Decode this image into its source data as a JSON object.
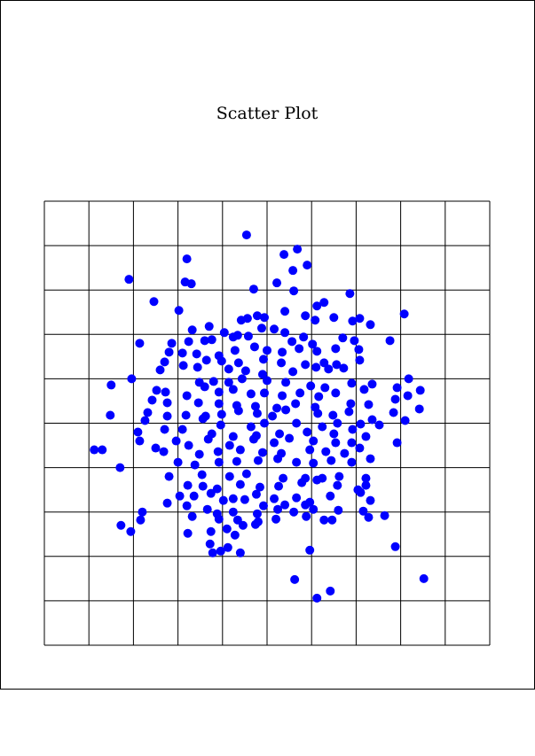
{
  "chart_data": {
    "type": "scatter",
    "title": "Scatter Plot",
    "color": "#0000ff",
    "grid": true,
    "xlim": [
      0,
      500
    ],
    "ylim": [
      0,
      500
    ],
    "xticks": [
      0,
      50,
      100,
      150,
      200,
      250,
      300,
      350,
      400,
      450,
      500
    ],
    "yticks": [
      0,
      50,
      100,
      150,
      200,
      250,
      300,
      350,
      400,
      450,
      500
    ],
    "x": [
      227,
      284,
      269,
      295,
      160,
      279,
      95,
      158,
      165,
      261,
      235,
      280,
      343,
      123,
      314,
      306,
      151,
      404,
      270,
      239,
      247,
      221,
      228,
      293,
      304,
      325,
      346,
      354,
      366,
      185,
      166,
      202,
      217,
      244,
      258,
      270,
      291,
      107,
      143,
      162,
      180,
      188,
      212,
      229,
      278,
      301,
      335,
      348,
      388,
      140,
      155,
      171,
      196,
      214,
      236,
      250,
      267,
      286,
      306,
      327,
      353,
      135,
      182,
      199,
      218,
      246,
      266,
      293,
      314,
      328,
      336,
      354,
      130,
      156,
      172,
      207,
      226,
      245,
      279,
      305,
      319,
      98,
      174,
      190,
      207,
      222,
      250,
      271,
      299,
      315,
      345,
      368,
      409,
      75,
      126,
      136,
      160,
      180,
      196,
      212,
      232,
      247,
      267,
      287,
      308,
      327,
      359,
      396,
      422,
      121,
      138,
      173,
      196,
      216,
      237,
      261,
      282,
      304,
      344,
      364,
      394,
      408,
      116,
      138,
      159,
      181,
      199,
      218,
      239,
      256,
      271,
      307,
      324,
      342,
      368,
      392,
      421,
      74,
      113,
      178,
      198,
      232,
      247,
      283,
      312,
      329,
      355,
      376,
      405,
      105,
      135,
      155,
      188,
      212,
      238,
      264,
      295,
      325,
      346,
      361,
      56,
      65,
      107,
      148,
      162,
      184,
      208,
      235,
      258,
      275,
      302,
      327,
      345,
      396,
      125,
      134,
      174,
      195,
      220,
      245,
      266,
      298,
      316,
      337,
      354,
      85,
      150,
      169,
      196,
      216,
      240,
      262,
      283,
      302,
      322,
      366,
      345,
      140,
      177,
      208,
      227,
      268,
      293,
      312,
      331,
      361,
      161,
      178,
      194,
      220,
      242,
      263,
      289,
      306,
      329,
      352,
      361,
      152,
      168,
      187,
      212,
      238,
      258,
      283,
      321,
      355,
      138,
      160,
      183,
      201,
      225,
      246,
      270,
      293,
      298,
      366,
      110,
      194,
      212,
      239,
      262,
      280,
      302,
      330,
      358,
      382,
      108,
      166,
      196,
      217,
      237,
      260,
      294,
      314,
      323,
      364,
      86,
      97,
      161,
      187,
      205,
      223,
      240,
      186,
      214,
      206,
      189,
      198,
      220,
      394,
      298,
      281,
      321,
      306,
      426
    ],
    "values": [
      462,
      446,
      440,
      428,
      435,
      422,
      412,
      409,
      407,
      408,
      401,
      399,
      396,
      387,
      386,
      382,
      377,
      373,
      376,
      371,
      369,
      366,
      368,
      371,
      366,
      369,
      365,
      368,
      361,
      359,
      355,
      352,
      349,
      357,
      356,
      352,
      347,
      340,
      340,
      342,
      343,
      344,
      347,
      348,
      342,
      339,
      346,
      343,
      343,
      330,
      329,
      328,
      326,
      332,
      336,
      332,
      330,
      334,
      331,
      334,
      333,
      319,
      321,
      320,
      318,
      322,
      318,
      316,
      318,
      316,
      312,
      321,
      310,
      315,
      313,
      311,
      309,
      305,
      308,
      313,
      311,
      300,
      296,
      297,
      296,
      300,
      298,
      296,
      292,
      290,
      295,
      294,
      300,
      293,
      287,
      285,
      281,
      291,
      285,
      288,
      283,
      284,
      281,
      284,
      280,
      284,
      288,
      290,
      287,
      276,
      273,
      273,
      272,
      270,
      269,
      267,
      272,
      268,
      272,
      271,
      277,
      281,
      262,
      258,
      259,
      258,
      260,
      264,
      261,
      258,
      265,
      261,
      259,
      263,
      254,
      262,
      266,
      259,
      253,
      255,
      248,
      246,
      250,
      250,
      246,
      250,
      249,
      248,
      253,
      240,
      243,
      243,
      238,
      235,
      236,
      238,
      240,
      238,
      243,
      235,
      220,
      220,
      230,
      230,
      225,
      232,
      225,
      232,
      228,
      233,
      230,
      228,
      228,
      228,
      222,
      218,
      215,
      218,
      220,
      217,
      216,
      220,
      218,
      216,
      222,
      200,
      206,
      203,
      206,
      207,
      208,
      210,
      206,
      205,
      208,
      210,
      206,
      190,
      192,
      190,
      193,
      188,
      188,
      188,
      190,
      188,
      180,
      179,
      176,
      181,
      178,
      179,
      183,
      186,
      180,
      175,
      180,
      168,
      168,
      171,
      165,
      170,
      165,
      166,
      168,
      172,
      160,
      157,
      153,
      163,
      164,
      157,
      158,
      158,
      161,
      163,
      150,
      148,
      150,
      148,
      153,
      150,
      153,
      152,
      151,
      146,
      141,
      145,
      142,
      141,
      136,
      142,
      145,
      141,
      141,
      144,
      135,
      128,
      126,
      128,
      131,
      135,
      139,
      114,
      124,
      110,
      104,
      106,
      104,
      111,
      107,
      74,
      61,
      53,
      75
    ]
  }
}
